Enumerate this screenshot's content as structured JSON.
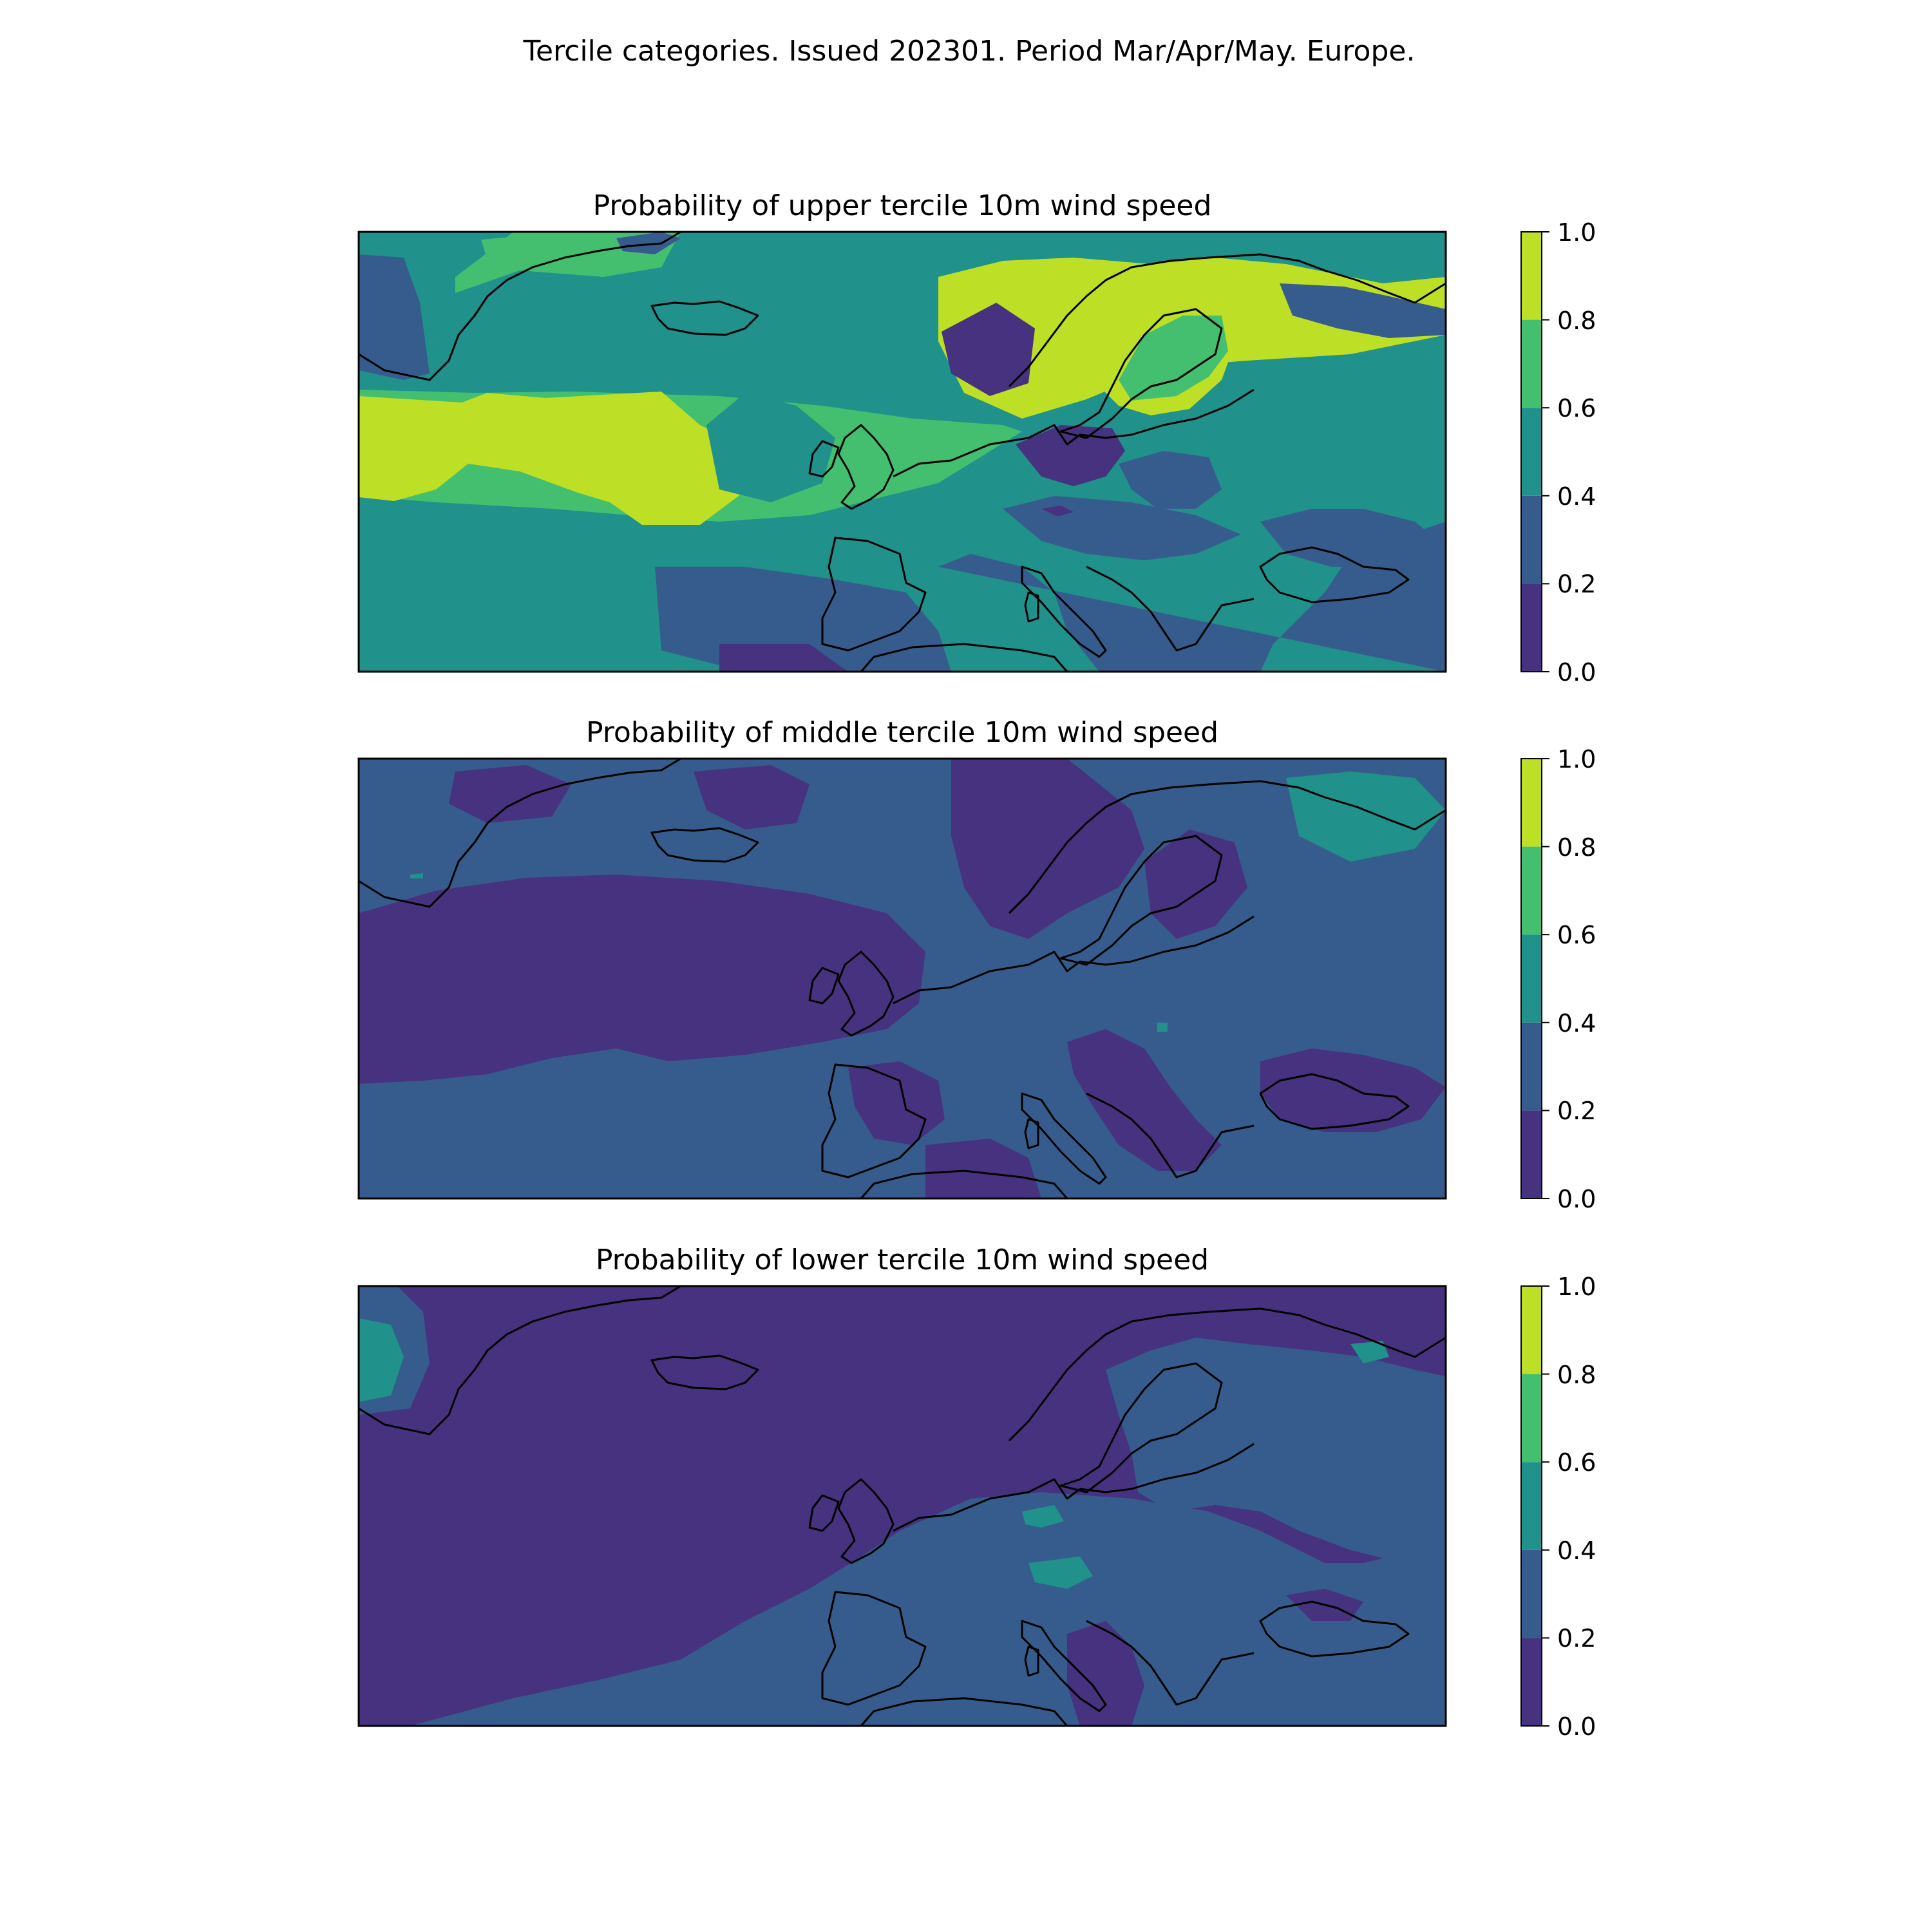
{
  "suptitle": "Tercile categories. Issued 202301. Period Mar/Apr/May. Europe.",
  "colormap": "viridis",
  "colorbar": {
    "levels": [
      0.0,
      0.2,
      0.4,
      0.6,
      0.8,
      1.0
    ],
    "tick_labels": [
      "0.0",
      "0.2",
      "0.4",
      "0.6",
      "0.8",
      "1.0"
    ],
    "colors": [
      "#46327e",
      "#365c8d",
      "#21918c",
      "#44bf70",
      "#bddf26"
    ]
  },
  "panels": [
    {
      "title": "Probability of upper tercile 10m wind speed",
      "base_level": 2,
      "regions": [
        {
          "level": 1,
          "desc": "west Greenland coast"
        },
        {
          "level": 3,
          "desc": "North Atlantic south of Greenland"
        },
        {
          "level": 4,
          "desc": "mid North Atlantic band"
        },
        {
          "level": 4,
          "desc": "Norway coast"
        },
        {
          "level": 4,
          "desc": "Sweden / Gulf of Bothnia"
        },
        {
          "level": 4,
          "desc": "north-east Greenland"
        },
        {
          "level": 3,
          "desc": "Norwegian Sea"
        },
        {
          "level": 3,
          "desc": "Italy / Adriatic"
        },
        {
          "level": 3,
          "desc": "Black Sea region"
        },
        {
          "level": 1,
          "desc": "North Sea / Germany"
        },
        {
          "level": 0,
          "desc": "France small patch"
        },
        {
          "level": 1,
          "desc": "Poland / Belarus"
        },
        {
          "level": 1,
          "desc": "north-west Russia"
        },
        {
          "level": 1,
          "desc": "subtropical Atlantic / Morocco"
        },
        {
          "level": 0,
          "desc": "north-west Africa"
        }
      ]
    },
    {
      "title": "Probability of middle tercile 10m wind speed",
      "base_level": 1,
      "regions": [
        {
          "level": 0,
          "desc": "North Atlantic"
        },
        {
          "level": 0,
          "desc": "Scandinavia"
        },
        {
          "level": 0,
          "desc": "Iceland area"
        },
        {
          "level": 0,
          "desc": "Mediterranean"
        },
        {
          "level": 0,
          "desc": "Black Sea / Russia"
        },
        {
          "level": 2,
          "desc": "Ukraine small patch"
        }
      ]
    },
    {
      "title": "Probability of lower tercile 10m wind speed",
      "base_level": 0,
      "regions": [
        {
          "level": 1,
          "desc": "Greenland west"
        },
        {
          "level": 2,
          "desc": "Greenland west core"
        },
        {
          "level": 1,
          "desc": "Continental Europe"
        },
        {
          "level": 1,
          "desc": "Iberia / North Africa"
        },
        {
          "level": 2,
          "desc": "North Africa"
        },
        {
          "level": 2,
          "desc": "Bay of Biscay / France"
        },
        {
          "level": 1,
          "desc": "Russia / Barents"
        },
        {
          "level": 2,
          "desc": "White Sea"
        },
        {
          "level": 1,
          "desc": "Turkey"
        }
      ]
    }
  ]
}
